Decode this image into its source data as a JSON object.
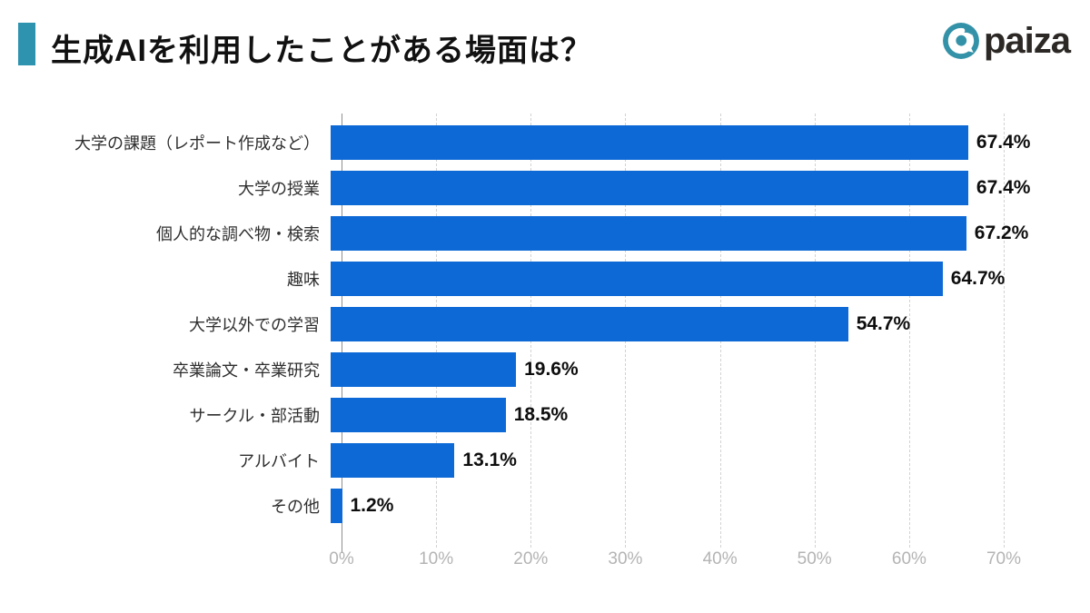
{
  "header": {
    "title": "生成AIを利用したことがある場面は？",
    "accent_color": "#2d93ae"
  },
  "logo": {
    "text": "paiza",
    "icon": "paiza-circle-mark",
    "icon_color": "#3492a8",
    "text_color": "#2b2826"
  },
  "chart_data": {
    "type": "bar",
    "orientation": "horizontal",
    "title": "生成AIを利用したことがある場面は？",
    "categories": [
      "大学の課題（レポート作成など）",
      "大学の授業",
      "個人的な調べ物・検索",
      "趣味",
      "大学以外での学習",
      "卒業論文・卒業研究",
      "サークル・部活動",
      "アルバイト",
      "その他"
    ],
    "values": [
      67.4,
      67.4,
      67.2,
      64.7,
      54.7,
      19.6,
      18.5,
      13.1,
      1.2
    ],
    "value_labels": [
      "67.4%",
      "67.4%",
      "67.2%",
      "64.7%",
      "54.7%",
      "19.6%",
      "18.5%",
      "13.1%",
      "1.2%"
    ],
    "xlim": [
      0,
      70
    ],
    "x_tick_step": 10,
    "x_tick_labels": [
      "0%",
      "10%",
      "20%",
      "30%",
      "40%",
      "50%",
      "60%",
      "70%"
    ],
    "bar_color": "#0d69d6",
    "grid": "dashed-vertical",
    "gridline_color": "#d2d2d2",
    "axis_line_color": "#8f8f8f",
    "tick_label_color": "#b4b4b4",
    "legend": "none"
  }
}
